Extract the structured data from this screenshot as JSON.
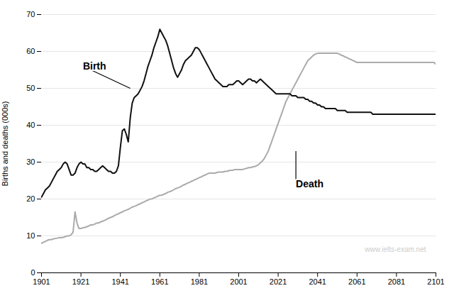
{
  "chart_data": {
    "type": "line",
    "ylabel": "Births and deaths (000s)",
    "xlim": [
      1901,
      2101
    ],
    "ylim": [
      0,
      70
    ],
    "xticks": [
      1901,
      1921,
      1941,
      1961,
      1981,
      2001,
      2021,
      2041,
      2061,
      2081,
      2101
    ],
    "yticks": [
      0,
      10,
      20,
      30,
      40,
      50,
      60,
      70
    ],
    "grid": true,
    "x": [
      1901,
      1902,
      1903,
      1904,
      1905,
      1906,
      1907,
      1908,
      1909,
      1910,
      1911,
      1912,
      1913,
      1914,
      1915,
      1916,
      1917,
      1918,
      1919,
      1920,
      1921,
      1922,
      1923,
      1924,
      1925,
      1926,
      1927,
      1928,
      1929,
      1930,
      1931,
      1932,
      1933,
      1934,
      1935,
      1936,
      1937,
      1938,
      1939,
      1940,
      1941,
      1942,
      1943,
      1944,
      1945,
      1946,
      1947,
      1948,
      1949,
      1950,
      1951,
      1952,
      1953,
      1954,
      1955,
      1956,
      1957,
      1958,
      1959,
      1960,
      1961,
      1962,
      1963,
      1964,
      1965,
      1966,
      1967,
      1968,
      1969,
      1970,
      1971,
      1972,
      1973,
      1974,
      1975,
      1976,
      1977,
      1978,
      1979,
      1980,
      1981,
      1982,
      1983,
      1984,
      1985,
      1986,
      1987,
      1988,
      1989,
      1990,
      1991,
      1992,
      1993,
      1994,
      1995,
      1996,
      1997,
      1998,
      1999,
      2000,
      2001,
      2002,
      2003,
      2004,
      2005,
      2006,
      2007,
      2008,
      2009,
      2010,
      2011,
      2012,
      2013,
      2014,
      2015,
      2016,
      2017,
      2018,
      2019,
      2020,
      2021,
      2022,
      2023,
      2024,
      2025,
      2026,
      2027,
      2028,
      2029,
      2030,
      2031,
      2032,
      2033,
      2034,
      2035,
      2036,
      2037,
      2038,
      2039,
      2040,
      2041,
      2042,
      2043,
      2044,
      2045,
      2046,
      2047,
      2048,
      2049,
      2050,
      2051,
      2052,
      2053,
      2054,
      2055,
      2056,
      2057,
      2058,
      2059,
      2060,
      2061,
      2062,
      2063,
      2064,
      2065,
      2066,
      2067,
      2068,
      2069,
      2070,
      2071,
      2072,
      2073,
      2074,
      2075,
      2076,
      2077,
      2078,
      2079,
      2080,
      2081,
      2082,
      2083,
      2084,
      2085,
      2086,
      2087,
      2088,
      2089,
      2090,
      2091,
      2092,
      2093,
      2094,
      2095,
      2096,
      2097,
      2098,
      2099,
      2100,
      2101
    ],
    "series": [
      {
        "name": "Birth",
        "color": "#111111",
        "values": [
          20.5,
          21.5,
          22.5,
          23.0,
          23.5,
          24.5,
          25.5,
          26.5,
          27.5,
          28.0,
          28.5,
          29.5,
          30.0,
          29.5,
          28.0,
          26.5,
          26.5,
          27.0,
          28.5,
          29.5,
          30.0,
          29.5,
          29.5,
          28.5,
          28.5,
          28.0,
          28.0,
          27.5,
          27.5,
          28.0,
          28.5,
          29.0,
          28.5,
          28.0,
          27.5,
          27.5,
          27.0,
          27.0,
          27.5,
          29.0,
          34.0,
          38.5,
          39.0,
          37.5,
          35.5,
          42.0,
          46.0,
          47.5,
          48.0,
          48.5,
          49.5,
          50.5,
          52.0,
          54.0,
          56.0,
          57.5,
          59.0,
          61.0,
          62.5,
          64.0,
          66.0,
          65.0,
          64.0,
          63.0,
          61.5,
          59.5,
          57.5,
          55.5,
          54.0,
          53.0,
          54.0,
          55.0,
          56.5,
          57.5,
          58.0,
          58.5,
          59.0,
          60.0,
          61.0,
          61.0,
          60.5,
          59.5,
          58.5,
          57.5,
          56.5,
          55.5,
          54.5,
          53.5,
          52.5,
          52.0,
          51.5,
          51.0,
          50.5,
          50.5,
          50.5,
          51.0,
          51.0,
          51.0,
          51.5,
          52.0,
          52.0,
          51.5,
          51.0,
          51.5,
          52.0,
          52.5,
          52.5,
          52.0,
          52.0,
          51.5,
          52.0,
          52.5,
          52.0,
          51.5,
          51.0,
          50.5,
          50.0,
          49.5,
          49.0,
          48.5,
          48.5,
          48.5,
          48.5,
          48.5,
          48.5,
          48.5,
          48.5,
          48.0,
          48.0,
          48.0,
          47.5,
          47.5,
          47.5,
          47.5,
          47.0,
          47.0,
          46.5,
          46.5,
          46.0,
          46.0,
          45.5,
          45.5,
          45.0,
          45.0,
          44.5,
          44.5,
          44.5,
          44.5,
          44.5,
          44.5,
          44.0,
          44.0,
          44.0,
          44.0,
          44.0,
          43.5,
          43.5,
          43.5,
          43.5,
          43.5,
          43.5,
          43.5,
          43.5,
          43.5,
          43.5,
          43.5,
          43.5,
          43.5,
          43.0,
          43.0,
          43.0,
          43.0,
          43.0,
          43.0,
          43.0,
          43.0,
          43.0,
          43.0,
          43.0,
          43.0,
          43.0,
          43.0,
          43.0,
          43.0,
          43.0,
          43.0,
          43.0,
          43.0,
          43.0,
          43.0,
          43.0,
          43.0,
          43.0,
          43.0,
          43.0,
          43.0,
          43.0,
          43.0,
          43.0,
          43.0,
          43.0
        ]
      },
      {
        "name": "Death",
        "color": "#aaaaaa",
        "values": [
          8.0,
          8.3,
          8.5,
          8.8,
          9.0,
          9.0,
          9.2,
          9.3,
          9.4,
          9.5,
          9.5,
          9.6,
          9.8,
          10.0,
          10.0,
          10.3,
          11.0,
          16.5,
          13.5,
          12.0,
          12.0,
          12.2,
          12.3,
          12.5,
          12.7,
          13.0,
          13.0,
          13.2,
          13.5,
          13.5,
          13.8,
          14.0,
          14.2,
          14.5,
          14.8,
          15.0,
          15.2,
          15.5,
          15.8,
          16.0,
          16.3,
          16.5,
          16.8,
          17.0,
          17.2,
          17.5,
          17.8,
          18.0,
          18.2,
          18.5,
          18.7,
          19.0,
          19.2,
          19.5,
          19.7,
          20.0,
          20.0,
          20.3,
          20.5,
          20.8,
          21.0,
          21.0,
          21.3,
          21.5,
          21.8,
          22.0,
          22.2,
          22.5,
          22.8,
          23.0,
          23.2,
          23.5,
          23.8,
          24.0,
          24.3,
          24.5,
          24.8,
          25.0,
          25.3,
          25.5,
          25.8,
          26.0,
          26.3,
          26.5,
          26.8,
          27.0,
          27.0,
          27.0,
          27.0,
          27.2,
          27.3,
          27.3,
          27.3,
          27.5,
          27.5,
          27.7,
          27.8,
          27.8,
          28.0,
          28.0,
          28.0,
          28.0,
          28.0,
          28.2,
          28.3,
          28.5,
          28.5,
          28.7,
          28.8,
          29.0,
          29.3,
          29.8,
          30.3,
          31.0,
          32.0,
          33.0,
          34.5,
          36.0,
          37.5,
          39.0,
          40.5,
          42.0,
          43.5,
          45.0,
          46.5,
          47.5,
          48.5,
          49.5,
          50.5,
          51.5,
          52.5,
          53.5,
          54.5,
          55.5,
          56.5,
          57.5,
          58.0,
          58.5,
          59.0,
          59.3,
          59.5,
          59.5,
          59.5,
          59.5,
          59.5,
          59.5,
          59.5,
          59.5,
          59.5,
          59.5,
          59.5,
          59.3,
          59.0,
          58.8,
          58.5,
          58.3,
          58.0,
          57.8,
          57.5,
          57.3,
          57.0,
          57.0,
          57.0,
          57.0,
          57.0,
          57.0,
          57.0,
          57.0,
          57.0,
          57.0,
          57.0,
          57.0,
          57.0,
          57.0,
          57.0,
          57.0,
          57.0,
          57.0,
          57.0,
          57.0,
          57.0,
          57.0,
          57.0,
          57.0,
          57.0,
          57.0,
          57.0,
          57.0,
          57.0,
          57.0,
          57.0,
          57.0,
          57.0,
          57.0,
          57.0,
          57.0,
          57.0,
          57.0,
          57.0,
          57.0,
          56.5
        ]
      }
    ],
    "annotations": [
      {
        "text": "Birth",
        "x": 1922,
        "y": 56,
        "arrow_x": 1946,
        "arrow_y": 50
      },
      {
        "text": "Death",
        "x": 2030,
        "y": 24,
        "arrow_x": 2030,
        "arrow_y": 33
      },
      {
        "text": "www.ielts-exam.net"
      }
    ]
  }
}
